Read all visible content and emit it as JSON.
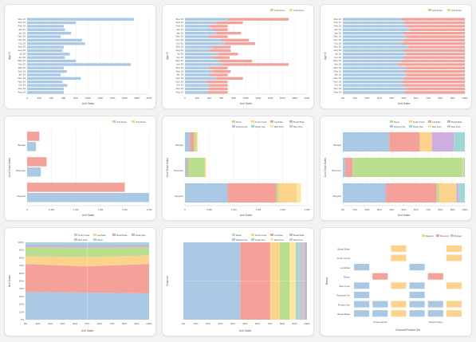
{
  "colors": {
    "blue": "#a8c8e4",
    "red": "#f4a19a",
    "green": "#b9df8e",
    "orange": "#fcd38d",
    "yellow": "#f9e79f",
    "purple": "#cdb0df",
    "teal": "#9ed7d3",
    "grey": "#c8c8c8",
    "pink": "#f7b6c2"
  },
  "chart_data": [
    {
      "type": "bar",
      "orientation": "horizontal",
      "ylabel": "Age G",
      "xlabel": "Unit Sales",
      "categories": [
        "Mar 20",
        "Feb 21",
        "Feb 20",
        "Jan 21",
        "Jan 20",
        "Dec 20",
        "Nov 20",
        "Oct 20",
        "Sep 20",
        "Aug 20",
        "Jul 20",
        "Jun 20",
        "May 20",
        "Apr 20",
        "Mar 19",
        "Feb 19",
        "Jan 19",
        "Dec 19",
        "Nov 19",
        "Oct 19",
        "Sep 19",
        "Aug 19"
      ],
      "xticks": [
        "0",
        "20K",
        "40K",
        "60K",
        "80K",
        "100K",
        "120K",
        "140K",
        "160K",
        "180K",
        "200K"
      ],
      "series": [
        {
          "name": "",
          "color": "blue",
          "values": [
            175,
            80,
            60,
            62,
            72,
            55,
            90,
            95,
            60,
            58,
            70,
            62,
            80,
            170,
            60,
            65,
            55,
            88,
            58,
            66,
            60,
            60
          ]
        }
      ],
      "xlim": [
        0,
        200
      ]
    },
    {
      "type": "bar",
      "orientation": "horizontal",
      "stacked": true,
      "ylabel": "Age G",
      "xlabel": "Unit Sales",
      "legend": [
        "Grid Series",
        "Grid Series"
      ],
      "categories": [
        "Mar 20",
        "Feb 21",
        "Feb 20",
        "Jan 21",
        "Jan 20",
        "Dec 20",
        "Nov 20",
        "Oct 20",
        "Sep 20",
        "Aug 20",
        "Jul 20",
        "Jun 20",
        "May 20",
        "Apr 20",
        "Mar 19",
        "Feb 19",
        "Jan 19",
        "Dec 19",
        "Nov 19",
        "Oct 19",
        "Sep 19",
        "Aug 19"
      ],
      "xticks": [
        "0",
        "20K",
        "40K",
        "60K",
        "80K",
        "100K",
        "120K",
        "140K",
        "160K",
        "180K",
        "200K"
      ],
      "series": [
        {
          "name": "",
          "color": "blue",
          "values": [
            70,
            50,
            40,
            45,
            52,
            40,
            60,
            65,
            45,
            40,
            55,
            45,
            55,
            60,
            40,
            45,
            40,
            50,
            35,
            40,
            40,
            38
          ]
        },
        {
          "name": "",
          "color": "red",
          "values": [
            100,
            45,
            30,
            25,
            40,
            30,
            45,
            50,
            30,
            35,
            32,
            28,
            55,
            110,
            30,
            30,
            30,
            45,
            35,
            30,
            30,
            32
          ]
        }
      ],
      "xlim": [
        0,
        200
      ]
    },
    {
      "type": "bar",
      "orientation": "horizontal",
      "stacked": true,
      "normalized": true,
      "ylabel": "Age G",
      "xlabel": "Unit Sales",
      "legend": [
        "Grid Series",
        "Grid Series"
      ],
      "categories": [
        "Mar 20",
        "Feb 21",
        "Feb 20",
        "Jan 21",
        "Jan 20",
        "Dec 20",
        "Nov 20",
        "Oct 20",
        "Sep 20",
        "Aug 20",
        "Jul 20",
        "Jun 20",
        "May 20",
        "Apr 20",
        "Mar 19",
        "Feb 19",
        "Jan 19",
        "Dec 19",
        "Nov 19",
        "Oct 19",
        "Sep 19",
        "Aug 19"
      ],
      "xticks": [
        "0%",
        "10%",
        "20%",
        "30%",
        "40%",
        "50%",
        "60%",
        "70%",
        "80%",
        "90%",
        "100%"
      ],
      "series": [
        {
          "name": "",
          "color": "blue",
          "values": [
            48,
            50,
            52,
            55,
            50,
            52,
            50,
            48,
            54,
            50,
            52,
            50,
            48,
            45,
            52,
            50,
            52,
            50,
            48,
            50,
            52,
            50
          ]
        },
        {
          "name": "",
          "color": "red",
          "values": [
            52,
            50,
            48,
            45,
            50,
            48,
            50,
            52,
            46,
            50,
            48,
            50,
            52,
            55,
            48,
            50,
            48,
            50,
            52,
            50,
            48,
            50
          ]
        }
      ]
    },
    {
      "type": "bar",
      "orientation": "horizontal",
      "ylabel": "Cust Total Sales",
      "xlabel": "Unit Sales",
      "legend": [
        "Grid Series",
        "Grid Series"
      ],
      "categories": [
        "Budget",
        "Premium",
        "Regular"
      ],
      "xticks": [
        "0",
        "0.5M",
        "1.0M",
        "1.5M",
        "2.0M",
        "2.5M"
      ],
      "series": [
        {
          "name": "",
          "color": "red",
          "values": [
            0.25,
            0.4,
            2.0
          ]
        },
        {
          "name": "",
          "color": "blue",
          "values": [
            0.18,
            0.28,
            2.5
          ]
        }
      ],
      "xlim": [
        0,
        2.5
      ]
    },
    {
      "type": "bar",
      "orientation": "horizontal",
      "stacked": true,
      "ylabel": "Cust Total Sales",
      "xlabel": "Unit Sales",
      "legend": [
        "Reset",
        "Fresh Creek",
        "Lambdas",
        "Bread Bake",
        "Reduced No",
        "Ready Dec",
        "Best Fries",
        "Best Fries"
      ],
      "categories": [
        "Budget",
        "Premium",
        "Regular"
      ],
      "xticks": [
        "0",
        "0.5M",
        "1.0M",
        "1.5M",
        "2.0M",
        "2.5M"
      ],
      "series": [
        {
          "name": "",
          "color": "blue",
          "values": [
            0.12,
            0.05,
            1.05
          ]
        },
        {
          "name": "",
          "color": "red",
          "values": [
            0.1,
            0.03,
            1.2
          ]
        },
        {
          "name": "",
          "color": "green",
          "values": [
            0.05,
            0.4,
            0.05
          ]
        },
        {
          "name": "",
          "color": "orange",
          "values": [
            0.03,
            0.02,
            0.45
          ]
        },
        {
          "name": "",
          "color": "yellow",
          "values": [
            0.02,
            0.02,
            0.1
          ]
        }
      ],
      "xlim": [
        0,
        3
      ]
    },
    {
      "type": "bar",
      "orientation": "horizontal",
      "stacked": true,
      "normalized": true,
      "ylabel": "Cust Total Sales",
      "xlabel": "Unit Sales",
      "legend": [
        "Reset",
        "Fresh Creek",
        "Lambdas",
        "Bread Bake",
        "Reduced No",
        "Ready Dec",
        "Best Fries",
        "Best Fries"
      ],
      "categories": [
        "Budget",
        "Premium",
        "Regular"
      ],
      "xticks": [
        "0%",
        "10%",
        "20%",
        "30%",
        "40%",
        "50%",
        "60%",
        "70%",
        "80%",
        "90%",
        "100%"
      ],
      "series": [
        {
          "name": "",
          "color": "blue",
          "values": [
            38,
            2,
            35
          ]
        },
        {
          "name": "",
          "color": "red",
          "values": [
            25,
            6,
            42
          ]
        },
        {
          "name": "",
          "color": "green",
          "values": [
            0,
            90,
            2
          ]
        },
        {
          "name": "",
          "color": "orange",
          "values": [
            10,
            1,
            14
          ]
        },
        {
          "name": "",
          "color": "purple",
          "values": [
            18,
            0,
            2
          ]
        },
        {
          "name": "",
          "color": "teal",
          "values": [
            9,
            1,
            5
          ]
        }
      ]
    },
    {
      "type": "area",
      "stacked": true,
      "normalized": true,
      "ylabel": "Unit Sales",
      "xlabel": "Unit Sales",
      "legend": [
        "Fresh Creek",
        "Lambdas",
        "Bread Bake",
        "Ready Dec",
        "Best Fries",
        "Reset"
      ],
      "xticks": [
        "0%",
        "10%",
        "20%",
        "30%",
        "40%",
        "50%",
        "60%",
        "70%",
        "80%",
        "90%",
        "100%"
      ],
      "yticks": [
        "0%",
        "10%",
        "20%",
        "30%",
        "40%",
        "50%",
        "60%",
        "70%",
        "80%",
        "90%",
        "100%"
      ],
      "x": [
        0,
        50,
        100
      ],
      "series": [
        {
          "name": "",
          "color": "blue",
          "values": [
            36,
            35,
            34
          ]
        },
        {
          "name": "",
          "color": "red",
          "values": [
            36,
            34,
            38
          ]
        },
        {
          "name": "",
          "color": "orange",
          "values": [
            10,
            12,
            11
          ]
        },
        {
          "name": "",
          "color": "green",
          "values": [
            12,
            12,
            11
          ]
        },
        {
          "name": "",
          "color": "purple",
          "values": [
            3,
            4,
            3
          ]
        },
        {
          "name": "",
          "color": "teal",
          "values": [
            3,
            3,
            3
          ]
        }
      ]
    },
    {
      "type": "area",
      "stacked": true,
      "normalized": true,
      "orientation": "horizontal",
      "ylabel": "Channel",
      "xlabel": "Unit Sales",
      "legend": [
        "Reset",
        "Fresh Creek",
        "Lambdas",
        "Bread Bake",
        "Reduced No",
        "Ready Dec",
        "Best Fries",
        "Best Fries"
      ],
      "xticks": [
        "0%",
        "10%",
        "20%",
        "30%",
        "40%",
        "50%",
        "60%",
        "70%",
        "80%",
        "90%",
        "100%"
      ],
      "series": [
        {
          "name": "",
          "color": "blue",
          "values": [
            46
          ]
        },
        {
          "name": "",
          "color": "red",
          "values": [
            24
          ]
        },
        {
          "name": "",
          "color": "orange",
          "values": [
            8
          ]
        },
        {
          "name": "",
          "color": "green",
          "values": [
            8
          ]
        },
        {
          "name": "",
          "color": "yellow",
          "values": [
            5
          ]
        },
        {
          "name": "",
          "color": "teal",
          "values": [
            3
          ]
        },
        {
          "name": "",
          "color": "grey",
          "values": [
            4
          ]
        },
        {
          "name": "",
          "color": "purple",
          "values": [
            2
          ]
        }
      ]
    },
    {
      "type": "heatmap",
      "ylabel": "Bread",
      "xlabel": "Channel/Product Ser",
      "legend": [
        "Regular",
        "Premium",
        "Budget"
      ],
      "columns": [
        "Supermarket",
        "Supermarket"
      ],
      "rows": [
        "Bread Bake",
        "Fresh Creek",
        "Lambdas",
        "Reset",
        "Best Fries",
        "Reduced No",
        "Ready Dec",
        "Bread Bake"
      ],
      "cells": [
        {
          "col": 0,
          "row": 0,
          "sub": 2,
          "color": "orange"
        },
        {
          "col": 0,
          "row": 1,
          "sub": 2,
          "color": "orange"
        },
        {
          "col": 0,
          "row": 2,
          "sub": 0,
          "color": "blue"
        },
        {
          "col": 0,
          "row": 3,
          "sub": 1,
          "color": "red"
        },
        {
          "col": 0,
          "row": 4,
          "sub": 0,
          "color": "blue"
        },
        {
          "col": 0,
          "row": 4,
          "sub": 2,
          "color": "orange"
        },
        {
          "col": 0,
          "row": 5,
          "sub": 0,
          "color": "blue"
        },
        {
          "col": 0,
          "row": 6,
          "sub": 0,
          "color": "blue"
        },
        {
          "col": 0,
          "row": 6,
          "sub": 1,
          "color": "blue"
        },
        {
          "col": 0,
          "row": 6,
          "sub": 2,
          "color": "orange"
        },
        {
          "col": 0,
          "row": 7,
          "sub": 0,
          "color": "blue"
        },
        {
          "col": 0,
          "row": 7,
          "sub": 1,
          "color": "blue"
        },
        {
          "col": 0,
          "row": 7,
          "sub": 2,
          "color": "orange"
        },
        {
          "col": 1,
          "row": 0,
          "sub": 2,
          "color": "orange"
        },
        {
          "col": 1,
          "row": 1,
          "sub": 2,
          "color": "orange"
        },
        {
          "col": 1,
          "row": 2,
          "sub": 0,
          "color": "blue"
        },
        {
          "col": 1,
          "row": 3,
          "sub": 1,
          "color": "red"
        },
        {
          "col": 1,
          "row": 4,
          "sub": 0,
          "color": "blue"
        },
        {
          "col": 1,
          "row": 4,
          "sub": 2,
          "color": "orange"
        },
        {
          "col": 1,
          "row": 5,
          "sub": 0,
          "color": "blue"
        },
        {
          "col": 1,
          "row": 6,
          "sub": 0,
          "color": "blue"
        },
        {
          "col": 1,
          "row": 6,
          "sub": 1,
          "color": "blue"
        },
        {
          "col": 1,
          "row": 6,
          "sub": 2,
          "color": "orange"
        },
        {
          "col": 1,
          "row": 7,
          "sub": 0,
          "color": "blue"
        },
        {
          "col": 1,
          "row": 7,
          "sub": 1,
          "color": "blue"
        },
        {
          "col": 1,
          "row": 7,
          "sub": 2,
          "color": "orange"
        }
      ]
    }
  ]
}
